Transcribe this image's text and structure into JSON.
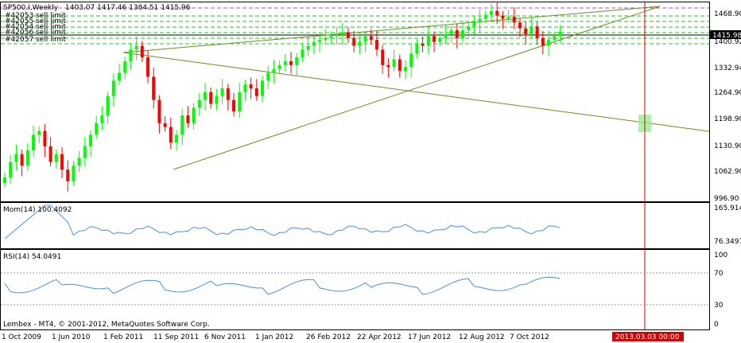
{
  "header": {
    "symbol": "SP500.I,Weekly",
    "ohlc": "1403.07 1417.46 1384.51 1415.96"
  },
  "order_labels": [
    "#42053 sell limit",
    "#42055 sell limit",
    "#42054 sell limit",
    "#42056 sell limit",
    "#42057 sell limit"
  ],
  "price_axis": {
    "ticks": [
      "1468.90",
      "1400.92",
      "1332.94",
      "1264.90",
      "1198.90",
      "1130.90",
      "1062.90",
      "996.90"
    ],
    "current_price": "1415.98"
  },
  "indicators": {
    "mom": {
      "label": "Mom(14) 100.4092",
      "ticks": [
        "165.914",
        "76.3497"
      ]
    },
    "rsi": {
      "label": "RSI(14) 54.0491",
      "ticks": [
        "100",
        "70",
        "30",
        "0"
      ]
    }
  },
  "copyright": "Lembex - MT4, © 2001-2012, MetaQuotes Software Corp.",
  "time_axis": [
    "1 Oct 2009",
    "1 Jun 2010",
    "1 Feb 2011",
    "11 Sep 2011",
    "6 Nov 2011",
    "1 Jan 2012",
    "26 Feb 2012",
    "22 Apr 2012",
    "17 Jun 2012",
    "12 Aug 2012",
    "7 Oct 2012"
  ],
  "vline_label": "2013.03.03 00:00",
  "colors": {
    "up": "#00ff00",
    "down": "#ff0000",
    "indicator": "#4a90d9",
    "trend": "#6b8e23",
    "order": "#00ee00",
    "vline": "#d00000"
  },
  "chart_data": {
    "type": "candlestick",
    "price_range": [
      980,
      1490
    ],
    "closes": [
      1040,
      1080,
      1100,
      1070,
      1110,
      1150,
      1160,
      1120,
      1080,
      1100,
      1060,
      1030,
      1070,
      1090,
      1120,
      1150,
      1180,
      1200,
      1250,
      1290,
      1310,
      1340,
      1370,
      1380,
      1350,
      1300,
      1240,
      1180,
      1170,
      1130,
      1150,
      1200,
      1180,
      1220,
      1240,
      1260,
      1230,
      1250,
      1270,
      1240,
      1210,
      1260,
      1280,
      1270,
      1250,
      1290,
      1310,
      1320,
      1330,
      1340,
      1330,
      1350,
      1370,
      1380,
      1390,
      1395,
      1400,
      1405,
      1410,
      1415,
      1400,
      1380,
      1390,
      1405,
      1395,
      1370,
      1330,
      1325,
      1345,
      1315,
      1325,
      1360,
      1385,
      1380,
      1405,
      1390,
      1400,
      1410,
      1420,
      1400,
      1420,
      1430,
      1440,
      1450,
      1460,
      1470,
      1458,
      1450,
      1455,
      1440,
      1425,
      1410,
      1430,
      1400,
      1380,
      1395,
      1405,
      1416
    ]
  }
}
